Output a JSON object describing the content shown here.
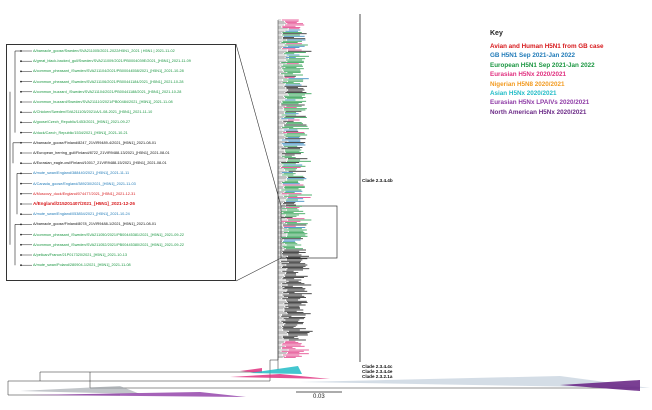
{
  "legend": {
    "title": "Key",
    "items": [
      {
        "label": "Avian and Human H5N1 from GB case",
        "color": "#d7191c"
      },
      {
        "label": "GB H5N1 Sep 2021-Jan 2022",
        "color": "#1f7ab8"
      },
      {
        "label": "European H5N1 Sep 2021-Jan 2022",
        "color": "#1a9641"
      },
      {
        "label": "Eurasian H5Nx 2020/2021",
        "color": "#e0307f"
      },
      {
        "label": "Nigerian H5N8 2020/2021",
        "color": "#f29a1f"
      },
      {
        "label": "Asian H5Nx 2020/2021",
        "color": "#22bcc7"
      },
      {
        "label": "Eurasian H5Nx LPAIVs 2020/2021",
        "color": "#8e3ba6"
      },
      {
        "label": "North American H5Nx 2020/2021",
        "color": "#6b2a87"
      }
    ]
  },
  "clades": {
    "main": "Clade 2.3.4.4b",
    "c1": "Clade 2.3.4.4c",
    "c2": "Clade 2.3.4.4e",
    "c3": "Clade 2.3.2.1a"
  },
  "scale": "0.03",
  "inset": {
    "rows": [
      {
        "text": "A/barnacle_goose/Sweden/SVA211005/2021-2022/H5N1_2021 | H5N1 | 2021-11-02",
        "color": "#1a9641"
      },
      {
        "text": "A/great_black-backed_gull/Sweden/SVA211009/2021/PB0004039E/2021_[H5N1]_2021-11-09",
        "color": "#1a9641"
      },
      {
        "text": "A/common_pheasant_/Sweden/SVA211104/2021/PB00044558/2021_[H5N1]_2021-10-28",
        "color": "#1a9641"
      },
      {
        "text": "A/common_pheasant_/Sweden/SVA211106/2021/PB00441184/2021_[H5N1]_2021-10-28",
        "color": "#1a9641"
      },
      {
        "text": "A/common_buzzard_/Sweden/SVA211104/2021/PB00441188/2021_[H5N1]_2021-10-28",
        "color": "#1a9641"
      },
      {
        "text": "A/common_buzzard/Sweden/SVA211110/2021/PB00484/2021_[H5N1]_2021-11-08",
        "color": "#1a9641"
      },
      {
        "text": "A/Chicken/Sweden/SVA211105/2021/A/1-08-2021_[H5N1]_2021-11-10",
        "color": "#1a9641"
      },
      {
        "text": "A/goose/Czech_Republic/1453/2021_[H5N1]_2021-09-27",
        "color": "#1a9641"
      },
      {
        "text": "A/duck/Czech_Republic/1534/2021_[H5N1]_2021-10-21",
        "color": "#1a9641"
      },
      {
        "text": "A/barnacle_goose/Finland/8247_21VIR9489-4/2021_[H5N1]_2021-08-01",
        "color": "#111111"
      },
      {
        "text": "A/European_herring_gull/Finland/8722_21VIR9488-13/2021_[H5N1]_2021-08-01",
        "color": "#111111"
      },
      {
        "text": "A/Eurasian_eagle-owl/Finland/10017_21VIR9488-15/2021_[H5N1]_2021-08-01",
        "color": "#111111"
      },
      {
        "text": "A/mute_swan/England/388440/2021_[H5N1]_2021-11-11",
        "color": "#1f7ab8"
      },
      {
        "text": "A/Canada_goose/England/389230/2021_[H5N1]_2021-11-03",
        "color": "#1f7ab8"
      },
      {
        "text": "A/Muscovy_duck/England/074477/2021_[H5N1]_2021-12-31",
        "color": "#d7191c"
      },
      {
        "text": "A/England/215201407/2021_[H5N1]_2021-12-26",
        "color": "#d7191c",
        "bold": true
      },
      {
        "text": "A/mute_swan/England/053854/2021_[H5N1]_2021-10-24",
        "color": "#1f7ab8"
      },
      {
        "text": "A/barnacle_goose/Finland/8078_21VIR9488-1/2021_[H5N1]_2021-08-01",
        "color": "#111111"
      },
      {
        "text": "A/common_pheasant_/Sweden/SVA211050/2021/PB00445381/2021_[H5N1]_2021-09-22",
        "color": "#1a9641"
      },
      {
        "text": "A/common_pheasant_/Sweden/SVA211052/2021/PB00445380/2021_[H5N1]_2021-09-22",
        "color": "#1a9641"
      },
      {
        "text": "A/pelican/France/21P017320/2021_[H5N1]_2021-10-13",
        "color": "#1a9641"
      },
      {
        "text": "A/mute_swan/Poland/280904-1/2021_[H5N1]_2021-11-08",
        "color": "#1a9641"
      }
    ]
  }
}
